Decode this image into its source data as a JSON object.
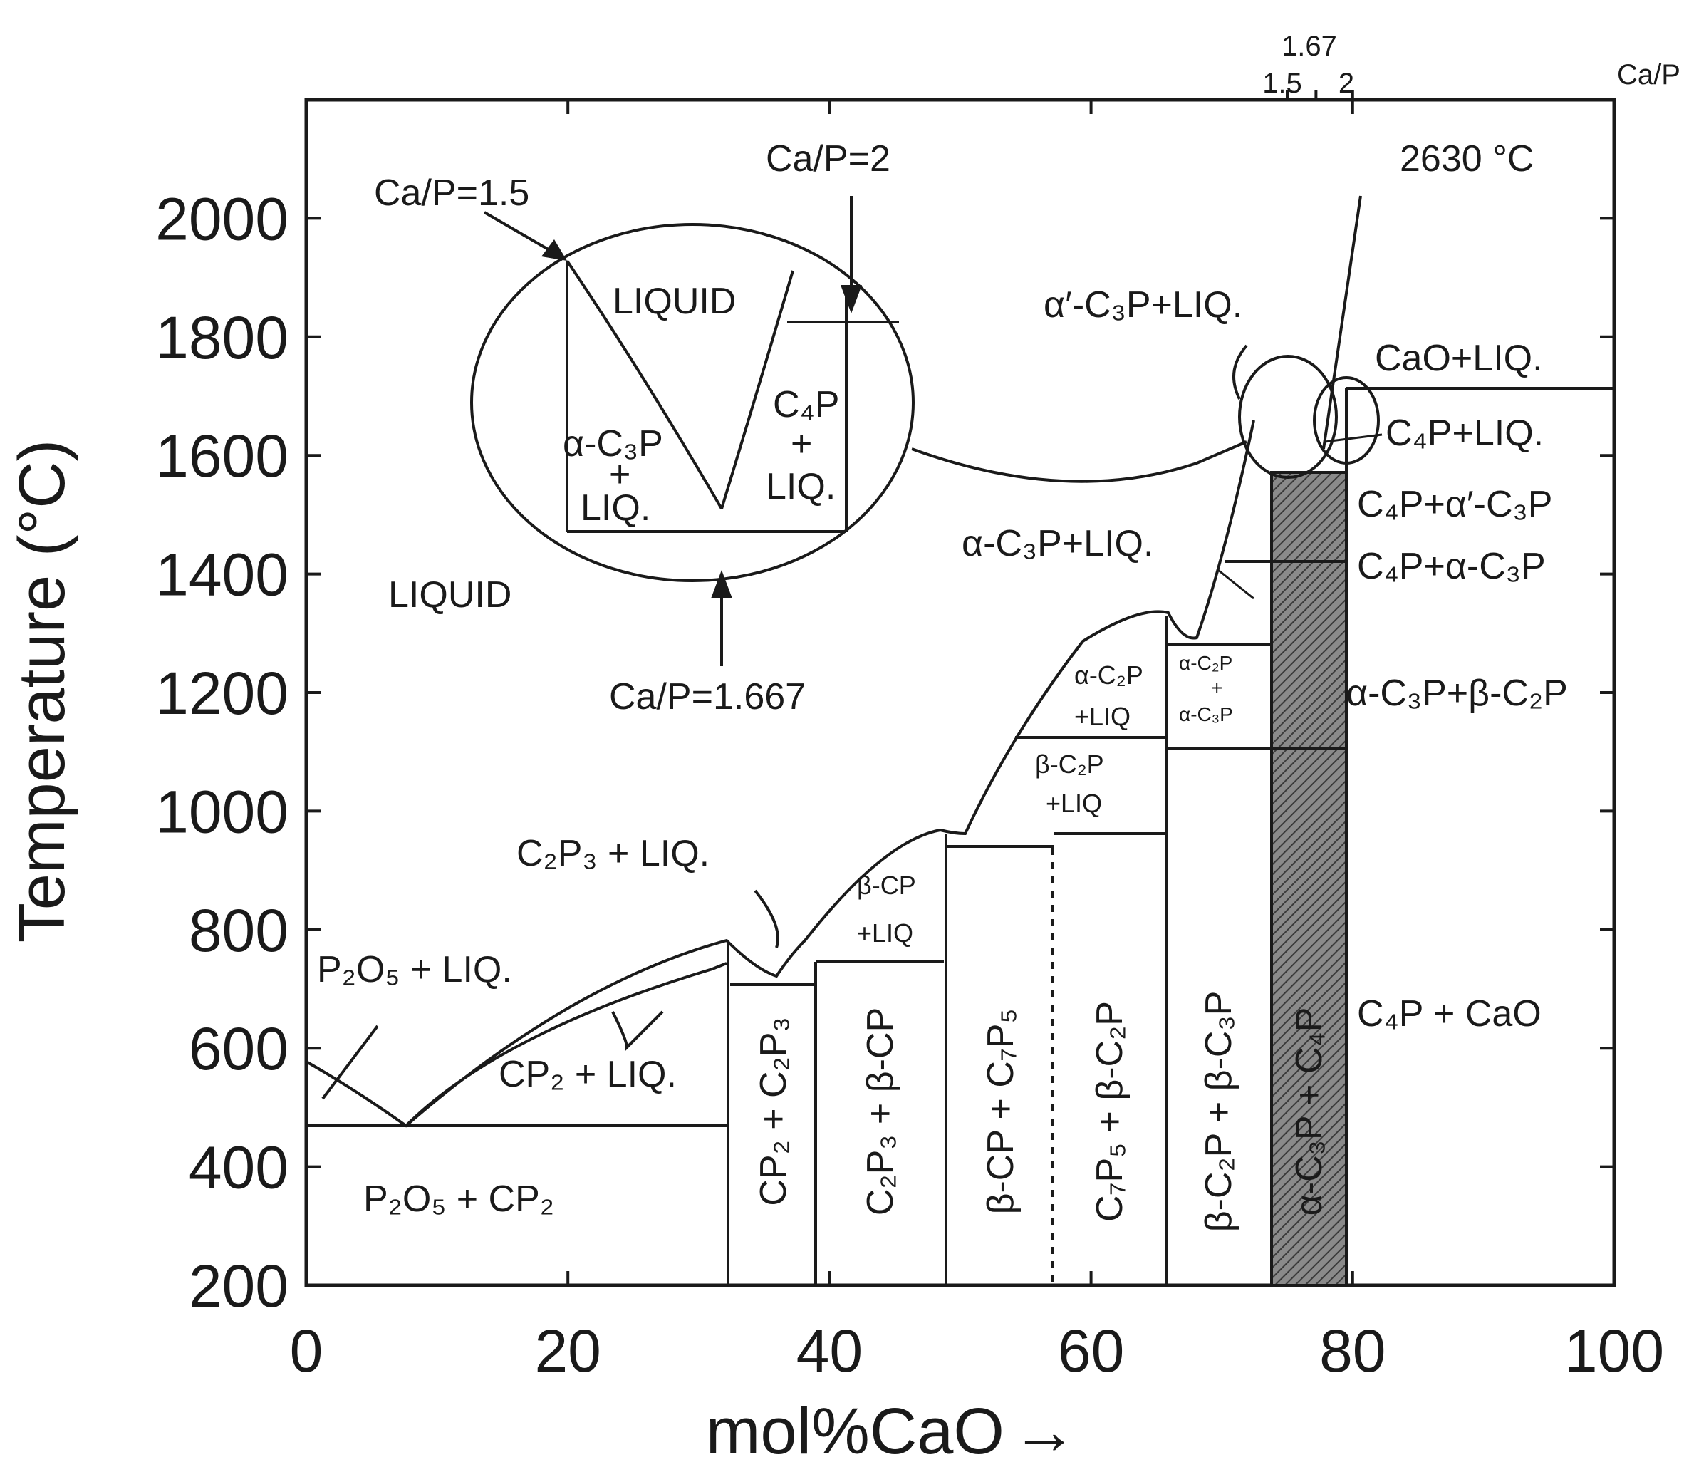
{
  "chart_data": {
    "type": "phase-diagram",
    "xlabel": "mol%CaO",
    "xlabel_arrow": "→",
    "ylabel": "Temperature (°C)",
    "xlim": [
      0,
      100
    ],
    "ylim": [
      200,
      2200
    ],
    "x_ticks": [
      0,
      20,
      40,
      60,
      80,
      100
    ],
    "y_ticks": [
      200,
      400,
      600,
      800,
      1000,
      1200,
      1400,
      1600,
      1800,
      2000
    ],
    "top_axis": {
      "label": "Ca/P",
      "ticks": [
        {
          "label": "1.5",
          "x": 75
        },
        {
          "label": "1.67",
          "x": 77.2
        },
        {
          "label": "2",
          "x": 80
        }
      ]
    },
    "annotations": {
      "ca_p_15": "Ca/P=1.5",
      "ca_p_2": "Ca/P=2",
      "ca_p_1667": "Ca/P=1.667",
      "temp_2630": "2630 °C"
    },
    "regions": {
      "liquid_main": "LIQUID",
      "liquid_inset": "LIQUID",
      "p2o5_liq": "P₂O₅ + LIQ.",
      "cp2_liq": "CP₂ + LIQ.",
      "c2p3_liq": "C₂P₃ + LIQ.",
      "p2o5_cp2": "P₂O₅ + CP₂",
      "cp2_c2p3": "CP₂ + C₂P₃",
      "c2p3_bcp": "C₂P₃ + β-CP",
      "bcp_c7p5": "β-CP + C₇P₅",
      "c7p5_bc2p": "C₇P₅ + β-C₂P",
      "bc2p_bc3p": "β-C₂P + β-C₃P",
      "ac3p_c4p": "α-C₃P + C₄P",
      "bcp_liq_1": "β-CP",
      "bcp_liq_2": "+LIQ",
      "bc2p_liq_1": "β-C₂P",
      "bc2p_liq_2": "+LIQ",
      "ac2p_liq_1": "α-C₂P",
      "ac2p_liq_2": "+LIQ",
      "ac2p_ac3p_1": "α-C₂P",
      "ac2p_ac3p_2": "+",
      "ac2p_ac3p_3": "α-C₃P",
      "ac3p_liq": "α-C₃P+LIQ.",
      "aprime_c3p_liq": "α′-C₃P+LIQ.",
      "cao_liq": "CaO+LIQ.",
      "c4p_liq": "C₄P+LIQ.",
      "c4p_aprime_c3p": "C₄P+α′-C₃P",
      "c4p_a_c3p": "C₄P+α-C₃P",
      "ac3p_bc2p": "α-C₃P+β-C₂P",
      "c4p_cao": "C₄P + CaO",
      "inset_ac3p": "α-C₃P",
      "inset_plus1": "+",
      "inset_liq1": "LIQ.",
      "inset_c4p": "C₄P",
      "inset_plus2": "+",
      "inset_liq2": "LIQ."
    },
    "invariants": [
      {
        "T": 480,
        "x_range": [
          0,
          32
        ]
      },
      {
        "T": 720,
        "x_range": [
          32.5,
          36
        ]
      },
      {
        "T": 760,
        "x_range": [
          39.5,
          48.5
        ]
      },
      {
        "T": 960,
        "x_range": [
          48.5,
          57.5
        ]
      },
      {
        "T": 970,
        "x_range": [
          57.5,
          66
        ]
      },
      {
        "T": 1130,
        "x_range": [
          55,
          66
        ]
      },
      {
        "T": 1280,
        "x_range": [
          66.5,
          73
        ]
      },
      {
        "T": 1110,
        "x_range": [
          66.5,
          80
        ]
      },
      {
        "T": 1420,
        "x_range": [
          71,
          80
        ]
      },
      {
        "T": 1570,
        "x_range": [
          73,
          80
        ]
      },
      {
        "T": 1710,
        "x_range": [
          80,
          100
        ]
      }
    ]
  }
}
